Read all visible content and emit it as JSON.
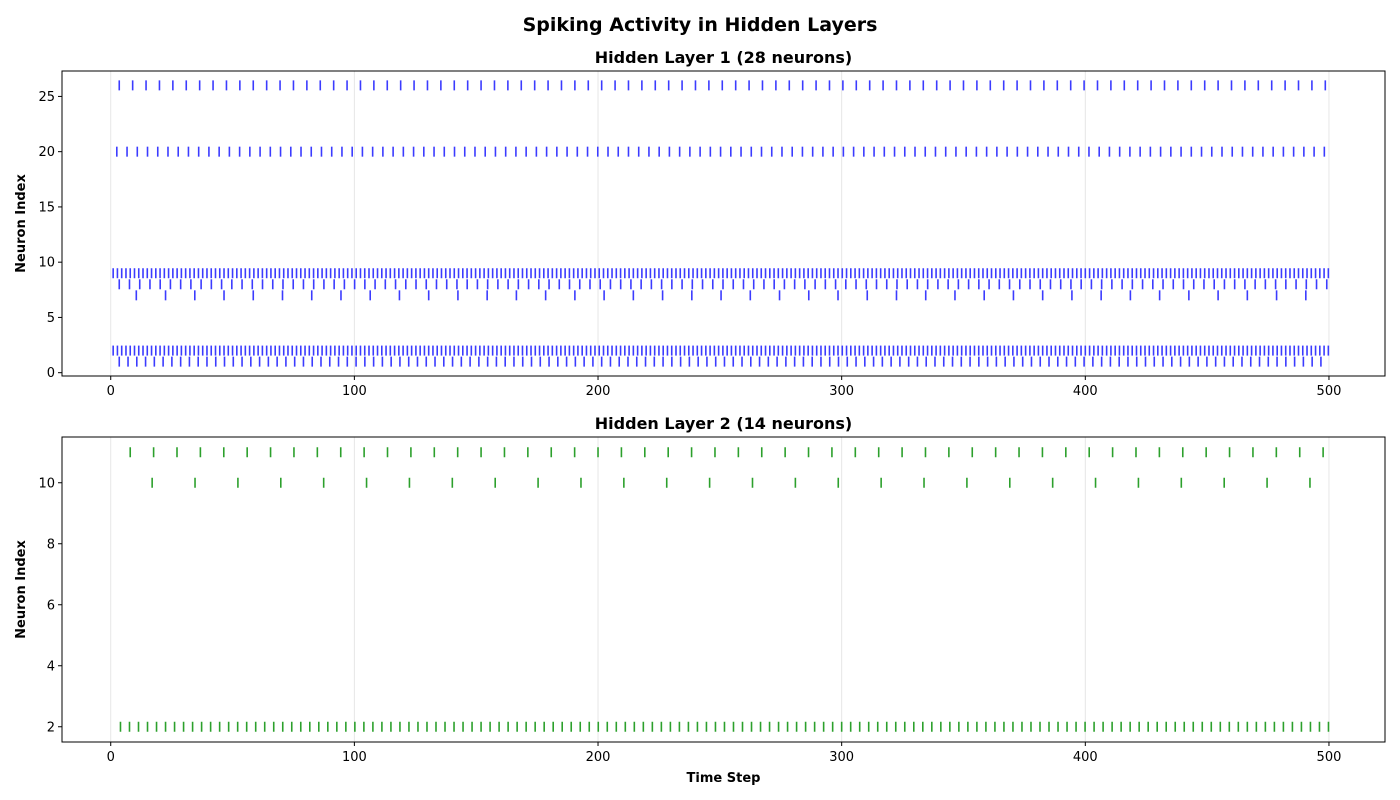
{
  "figure": {
    "suptitle": "Spiking Activity in Hidden Layers"
  },
  "chart_data": [
    {
      "type": "scatter",
      "marker": "vertical-line",
      "title": "Hidden Layer 1 (28 neurons)",
      "xlabel": "",
      "ylabel": "Neuron Index",
      "xlim": [
        -20,
        523
      ],
      "ylim": [
        -0.3,
        27.3
      ],
      "xticks": [
        0,
        100,
        200,
        300,
        400,
        500
      ],
      "yticks": [
        0,
        5,
        10,
        15,
        20,
        25
      ],
      "grid": "vertical",
      "color": "#3b3bff",
      "trains": [
        {
          "neuron": 26,
          "start": 3.5,
          "end": 500,
          "period": 5.5
        },
        {
          "neuron": 20,
          "start": 2.5,
          "end": 500,
          "period": 4.2
        },
        {
          "neuron": 9,
          "start": 1,
          "end": 500,
          "period": 1.75
        },
        {
          "neuron": 8,
          "start": 3.5,
          "end": 500,
          "period": 4.2
        },
        {
          "neuron": 7,
          "start": 10.5,
          "end": 500,
          "period": 12
        },
        {
          "neuron": 2,
          "start": 1,
          "end": 500,
          "period": 1.75
        },
        {
          "neuron": 1,
          "start": 3.5,
          "end": 500,
          "period": 3.6
        }
      ]
    },
    {
      "type": "scatter",
      "marker": "vertical-line",
      "title": "Hidden Layer 2 (14 neurons)",
      "xlabel": "Time Step",
      "ylabel": "Neuron Index",
      "xlim": [
        -20,
        523
      ],
      "ylim": [
        1.5,
        11.5
      ],
      "xticks": [
        0,
        100,
        200,
        300,
        400,
        500
      ],
      "yticks": [
        2,
        4,
        6,
        8,
        10
      ],
      "grid": "vertical",
      "color": "#2ca02c",
      "trains": [
        {
          "neuron": 11,
          "start": 8,
          "end": 500,
          "period": 9.6
        },
        {
          "neuron": 10,
          "start": 17,
          "end": 500,
          "period": 17.6
        },
        {
          "neuron": 2,
          "start": 4,
          "end": 500,
          "period": 3.7
        }
      ]
    }
  ]
}
